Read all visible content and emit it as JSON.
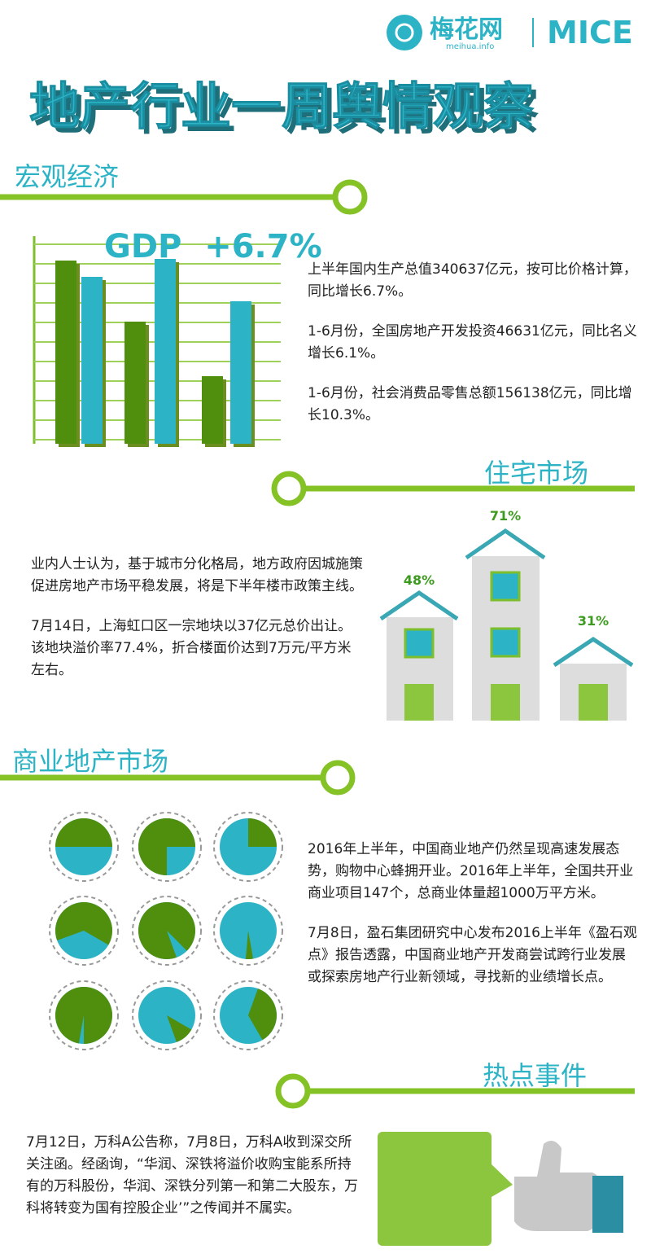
{
  "header": {
    "logo": "梅花网",
    "logo_sub": "meihua.info",
    "brand": "MICE"
  },
  "title": "地产行业一周舆情观察",
  "sections": [
    {
      "heading": "宏观经济",
      "badge": "GDP  +6.7%",
      "paragraphs": [
        "上半年国内生产总值340637亿元，按可比价格计算，同比增长6.7%。",
        "1-6月份，全国房地产开发投资46631亿元，同比名义增长6.1%。",
        "1-6月份，社会消费品零售总额156138亿元，同比增长10.3%。"
      ]
    },
    {
      "heading": "住宅市场",
      "paragraphs": [
        "业内人士认为，基于城市分化格局，地方政府因城施策促进房地产市场平稳发展，将是下半年楼市政策主线。",
        "7月14日，上海虹口区一宗地块以37亿元总价出让。该地块溢价率77.4%，折合楼面价达到7万元/平方米左右。"
      ],
      "house_labels": [
        "48%",
        "71%",
        "31%"
      ]
    },
    {
      "heading": "商业地产市场",
      "paragraphs": [
        "2016年上半年，中国商业地产仍然呈现高速发展态势，购物中心蜂拥开业。2016年上半年，全国共开业商业项目147个，总商业体量超1000万平方米。",
        "7月8日，盈石集团研究中心发布2016上半年《盈石观点》报告透露，中国商业地产开发商尝试跨行业发展或探索房地产行业新领域，寻找新的业绩增长点。"
      ]
    },
    {
      "heading": "热点事件",
      "paragraphs": [
        "7月12日，万科A公告称，7月8日，万科A收到深交所关注函。经函询，“华润、深铁将溢价收购宝能系所持有的万科股份，华润、深铁分列第一和第二大股东，万科将转变为国有控股企业’”之传闻并不属实。"
      ]
    }
  ]
}
